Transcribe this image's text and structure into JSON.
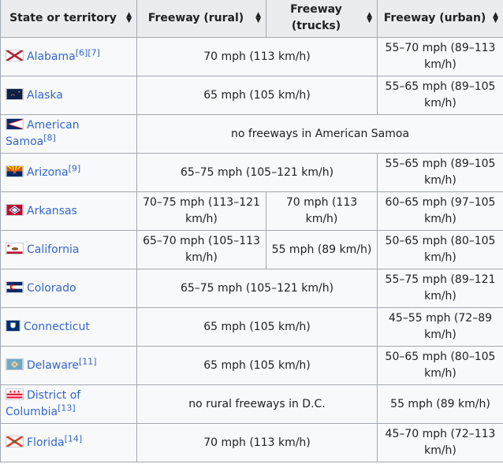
{
  "table": {
    "headers": [
      {
        "label": "State or territory"
      },
      {
        "label": "Freeway (rural)"
      },
      {
        "label": "Freeway (trucks)"
      },
      {
        "label": "Freeway (urban)"
      }
    ],
    "rows": [
      {
        "state": "Alabama",
        "refs": "[6][7]",
        "rural_trucks": "70 mph (113 km/h)",
        "urban": "55–70 mph (89–113 km/h)",
        "flag_icon": "alabama-flag-icon"
      },
      {
        "state": "Alaska",
        "refs": "",
        "rural_trucks": "65 mph (105 km/h)",
        "urban": "55–65 mph (89–105 km/h)",
        "flag_icon": "alaska-flag-icon"
      },
      {
        "state": "American Samoa",
        "refs": "[8]",
        "all": "no freeways in American Samoa",
        "flag_icon": "american-samoa-flag-icon"
      },
      {
        "state": "Arizona",
        "refs": "[9]",
        "rural_trucks": "65–75 mph (105–121 km/h)",
        "urban": "55–65 mph (89–105 km/h)",
        "flag_icon": "arizona-flag-icon"
      },
      {
        "state": "Arkansas",
        "refs": "",
        "rural": "70–75 mph (113–121 km/h)",
        "trucks": "70 mph (113 km/h)",
        "urban": "60–65 mph (97–105 km/h)",
        "flag_icon": "arkansas-flag-icon"
      },
      {
        "state": "California",
        "refs": "",
        "rural": "65–70 mph (105–113 km/h)",
        "trucks": "55 mph (89 km/h)",
        "urban": "50–65 mph (80–105 km/h)",
        "flag_icon": "california-flag-icon"
      },
      {
        "state": "Colorado",
        "refs": "",
        "rural_trucks": "65–75 mph (105–121 km/h)",
        "urban": "55–75 mph (89–121 km/h)",
        "flag_icon": "colorado-flag-icon"
      },
      {
        "state": "Connecticut",
        "refs": "",
        "rural_trucks": "65 mph (105 km/h)",
        "urban": "45–55 mph (72–89 km/h)",
        "flag_icon": "connecticut-flag-icon"
      },
      {
        "state": "Delaware",
        "refs": "[11]",
        "rural_trucks": "65 mph (105 km/h)",
        "urban": "50–65 mph (80–105 km/h)",
        "flag_icon": "delaware-flag-icon"
      },
      {
        "state": "District of Columbia",
        "refs": "[13]",
        "rural_trucks": "no rural freeways in D.C.",
        "urban": "55 mph (89 km/h)",
        "flag_icon": "district-of-columbia-flag-icon"
      },
      {
        "state": "Florida",
        "refs": "[14]",
        "rural_trucks": "70 mph (113 km/h)",
        "urban": "45–70 mph (72–113 km/h)",
        "flag_icon": "florida-flag-icon"
      }
    ]
  },
  "colors": {
    "link": "#3366cc",
    "header_bg": "#eaecf0",
    "cell_bg": "#f8f9fa",
    "border": "#a2a9b1"
  }
}
